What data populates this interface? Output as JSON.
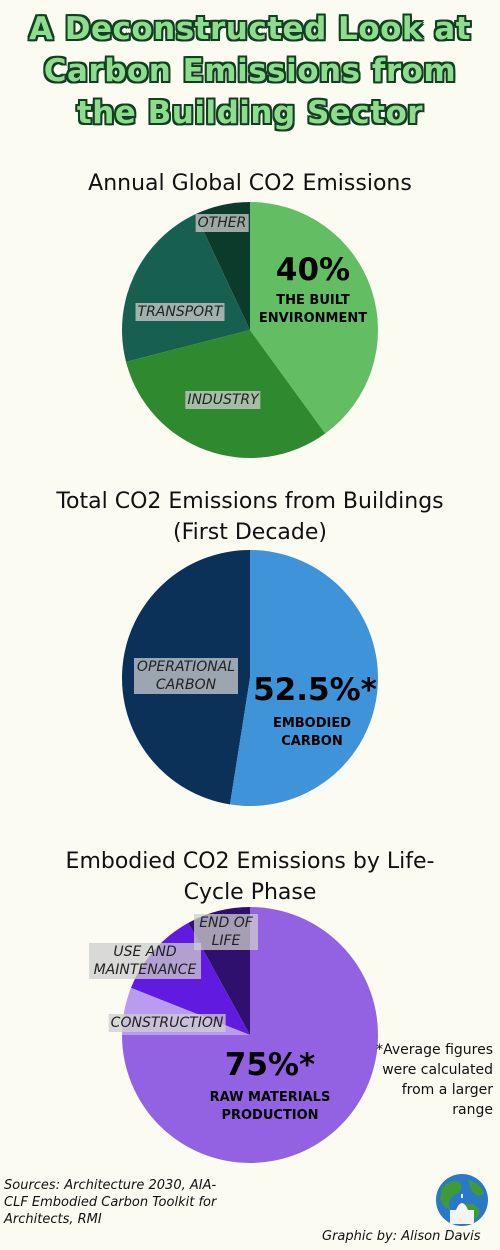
{
  "title": "A Deconstructed Look at Carbon Emissions from the Building Sector",
  "chart_data": [
    {
      "type": "pie",
      "title": "Annual Global CO2 Emissions",
      "categories": [
        "THE BUILT ENVIRONMENT",
        "INDUSTRY",
        "TRANSPORT",
        "OTHER"
      ],
      "values": [
        40,
        31,
        22,
        7
      ],
      "value_labels": [
        "40%",
        null,
        null,
        null
      ],
      "colors": [
        "#63bd63",
        "#2f8a2f",
        "#17604f",
        "#0b3b2b"
      ]
    },
    {
      "type": "pie",
      "title": "Total CO2 Emissions from Buildings (First Decade)",
      "categories": [
        "EMBODIED CARBON",
        "OPERATIONAL CARBON"
      ],
      "values": [
        52.5,
        47.5
      ],
      "value_labels": [
        "52.5%*",
        null
      ],
      "colors": [
        "#3f93d8",
        "#0b3159"
      ]
    },
    {
      "type": "pie",
      "title": "Embodied CO2 Emissions by Life-Cycle Phase",
      "categories": [
        "RAW MATERIALS PRODUCTION",
        "CONSTRUCTION",
        "USE AND MAINTENANCE",
        "END OF LIFE"
      ],
      "values": [
        75,
        6,
        11,
        8
      ],
      "value_labels": [
        "75%*",
        null,
        null,
        null
      ],
      "colors": [
        "#9262e2",
        "#b99cf2",
        "#601ae0",
        "#2f106e"
      ]
    }
  ],
  "footnote": "*Average figures were calculated from a larger range",
  "sources": "Sources: Architecture 2030, AIA-CLF Embodied Carbon Toolkit for Architects, RMI",
  "credit": "Graphic by: Alison Davis"
}
